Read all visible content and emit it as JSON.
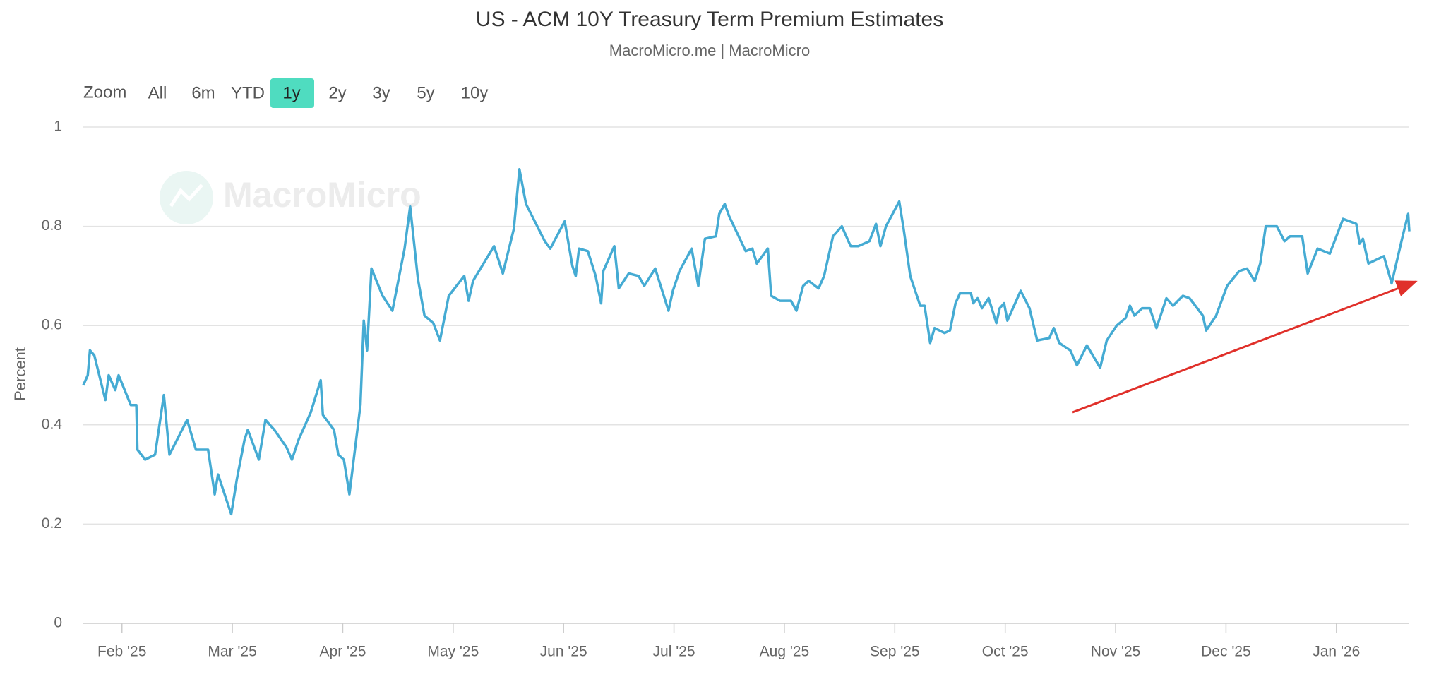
{
  "chart_data": {
    "type": "line",
    "title": "US - ACM 10Y Treasury Term Premium Estimates",
    "subtitle": "MacroMicro.me | MacroMicro",
    "watermark": "MacroMicro",
    "range_selector": {
      "label": "Zoom",
      "buttons": [
        "All",
        "6m",
        "YTD",
        "1y",
        "2y",
        "3y",
        "5y",
        "10y"
      ],
      "selected": 3
    },
    "y_label": "Percent",
    "ylim": [
      0,
      1
    ],
    "yticks": [
      0,
      0.2,
      0.4,
      0.6,
      0.8,
      1
    ],
    "xlim": [
      0.65,
      12.66
    ],
    "xticks": [
      {
        "value": 1,
        "label": "Feb '25"
      },
      {
        "value": 2,
        "label": "Mar '25"
      },
      {
        "value": 3,
        "label": "Apr '25"
      },
      {
        "value": 4,
        "label": "May '25"
      },
      {
        "value": 5,
        "label": "Jun '25"
      },
      {
        "value": 6,
        "label": "Jul '25"
      },
      {
        "value": 7,
        "label": "Aug '25"
      },
      {
        "value": 8,
        "label": "Sep '25"
      },
      {
        "value": 9,
        "label": "Oct '25"
      },
      {
        "value": 10,
        "label": "Nov '25"
      },
      {
        "value": 11,
        "label": "Dec '25"
      },
      {
        "value": 12,
        "label": "Jan '26"
      }
    ],
    "grid": true,
    "x": [
      0.65,
      0.69,
      0.71,
      0.75,
      0.85,
      0.88,
      0.94,
      0.97,
      1.08,
      1.13,
      1.14,
      1.21,
      1.3,
      1.38,
      1.43,
      1.59,
      1.67,
      1.78,
      1.84,
      1.87,
      1.99,
      2.04,
      2.11,
      2.14,
      2.24,
      2.3,
      2.38,
      2.49,
      2.54,
      2.6,
      2.71,
      2.8,
      2.82,
      2.92,
      2.96,
      3.01,
      3.06,
      3.16,
      3.19,
      3.22,
      3.26,
      3.36,
      3.45,
      3.56,
      3.61,
      3.68,
      3.74,
      3.82,
      3.88,
      3.96,
      4.1,
      4.14,
      4.18,
      4.37,
      4.45,
      4.55,
      4.6,
      4.66,
      4.83,
      4.88,
      5.01,
      5.08,
      5.11,
      5.14,
      5.22,
      5.29,
      5.34,
      5.36,
      5.46,
      5.5,
      5.59,
      5.68,
      5.73,
      5.83,
      5.95,
      5.99,
      6.05,
      6.16,
      6.22,
      6.28,
      6.38,
      6.41,
      6.46,
      6.5,
      6.65,
      6.71,
      6.75,
      6.85,
      6.88,
      6.96,
      7.06,
      7.11,
      7.17,
      7.22,
      7.31,
      7.36,
      7.44,
      7.52,
      7.6,
      7.67,
      7.77,
      7.83,
      7.87,
      7.92,
      8.04,
      8.08,
      8.14,
      8.23,
      8.27,
      8.32,
      8.36,
      8.45,
      8.5,
      8.55,
      8.59,
      8.69,
      8.71,
      8.75,
      8.79,
      8.85,
      8.92,
      8.95,
      8.99,
      9.02,
      9.14,
      9.22,
      9.29,
      9.4,
      9.44,
      9.49,
      9.59,
      9.65,
      9.74,
      9.86,
      9.92,
      10.01,
      10.09,
      10.13,
      10.17,
      10.24,
      10.31,
      10.37,
      10.46,
      10.52,
      10.61,
      10.67,
      10.79,
      10.82,
      10.91,
      11.01,
      11.12,
      11.19,
      11.26,
      11.31,
      11.36,
      11.46,
      11.53,
      11.58,
      11.69,
      11.74,
      11.83,
      11.94,
      12.06,
      12.18,
      12.21,
      12.24,
      12.29,
      12.43,
      12.5,
      12.6,
      12.65,
      12.66
    ],
    "series": [
      {
        "name": "US - ACM 10Y Treasury Term Premium Estimates",
        "color": "#45abd3",
        "values": [
          0.48,
          0.5,
          0.55,
          0.54,
          0.45,
          0.5,
          0.47,
          0.5,
          0.44,
          0.44,
          0.35,
          0.33,
          0.34,
          0.46,
          0.34,
          0.41,
          0.35,
          0.35,
          0.26,
          0.3,
          0.22,
          0.29,
          0.37,
          0.39,
          0.33,
          0.41,
          0.39,
          0.355,
          0.33,
          0.37,
          0.425,
          0.49,
          0.42,
          0.39,
          0.34,
          0.33,
          0.26,
          0.44,
          0.61,
          0.55,
          0.715,
          0.66,
          0.63,
          0.755,
          0.84,
          0.695,
          0.62,
          0.605,
          0.57,
          0.66,
          0.7,
          0.65,
          0.69,
          0.76,
          0.705,
          0.795,
          0.915,
          0.845,
          0.77,
          0.755,
          0.81,
          0.72,
          0.7,
          0.755,
          0.75,
          0.7,
          0.645,
          0.71,
          0.76,
          0.675,
          0.705,
          0.7,
          0.68,
          0.715,
          0.63,
          0.67,
          0.71,
          0.755,
          0.68,
          0.775,
          0.78,
          0.825,
          0.845,
          0.82,
          0.75,
          0.755,
          0.725,
          0.755,
          0.66,
          0.65,
          0.65,
          0.63,
          0.68,
          0.69,
          0.675,
          0.7,
          0.78,
          0.8,
          0.76,
          0.76,
          0.77,
          0.805,
          0.76,
          0.8,
          0.85,
          0.795,
          0.7,
          0.64,
          0.64,
          0.565,
          0.595,
          0.585,
          0.59,
          0.645,
          0.665,
          0.665,
          0.645,
          0.655,
          0.635,
          0.655,
          0.605,
          0.635,
          0.645,
          0.61,
          0.67,
          0.635,
          0.57,
          0.575,
          0.595,
          0.565,
          0.55,
          0.52,
          0.56,
          0.515,
          0.57,
          0.6,
          0.615,
          0.64,
          0.62,
          0.635,
          0.635,
          0.595,
          0.655,
          0.64,
          0.66,
          0.655,
          0.62,
          0.59,
          0.62,
          0.68,
          0.71,
          0.715,
          0.69,
          0.725,
          0.8,
          0.8,
          0.77,
          0.78,
          0.78,
          0.705,
          0.755,
          0.745,
          0.815,
          0.805,
          0.765,
          0.775,
          0.725,
          0.74,
          0.685,
          0.78,
          0.825,
          0.79
        ]
      }
    ]
  }
}
